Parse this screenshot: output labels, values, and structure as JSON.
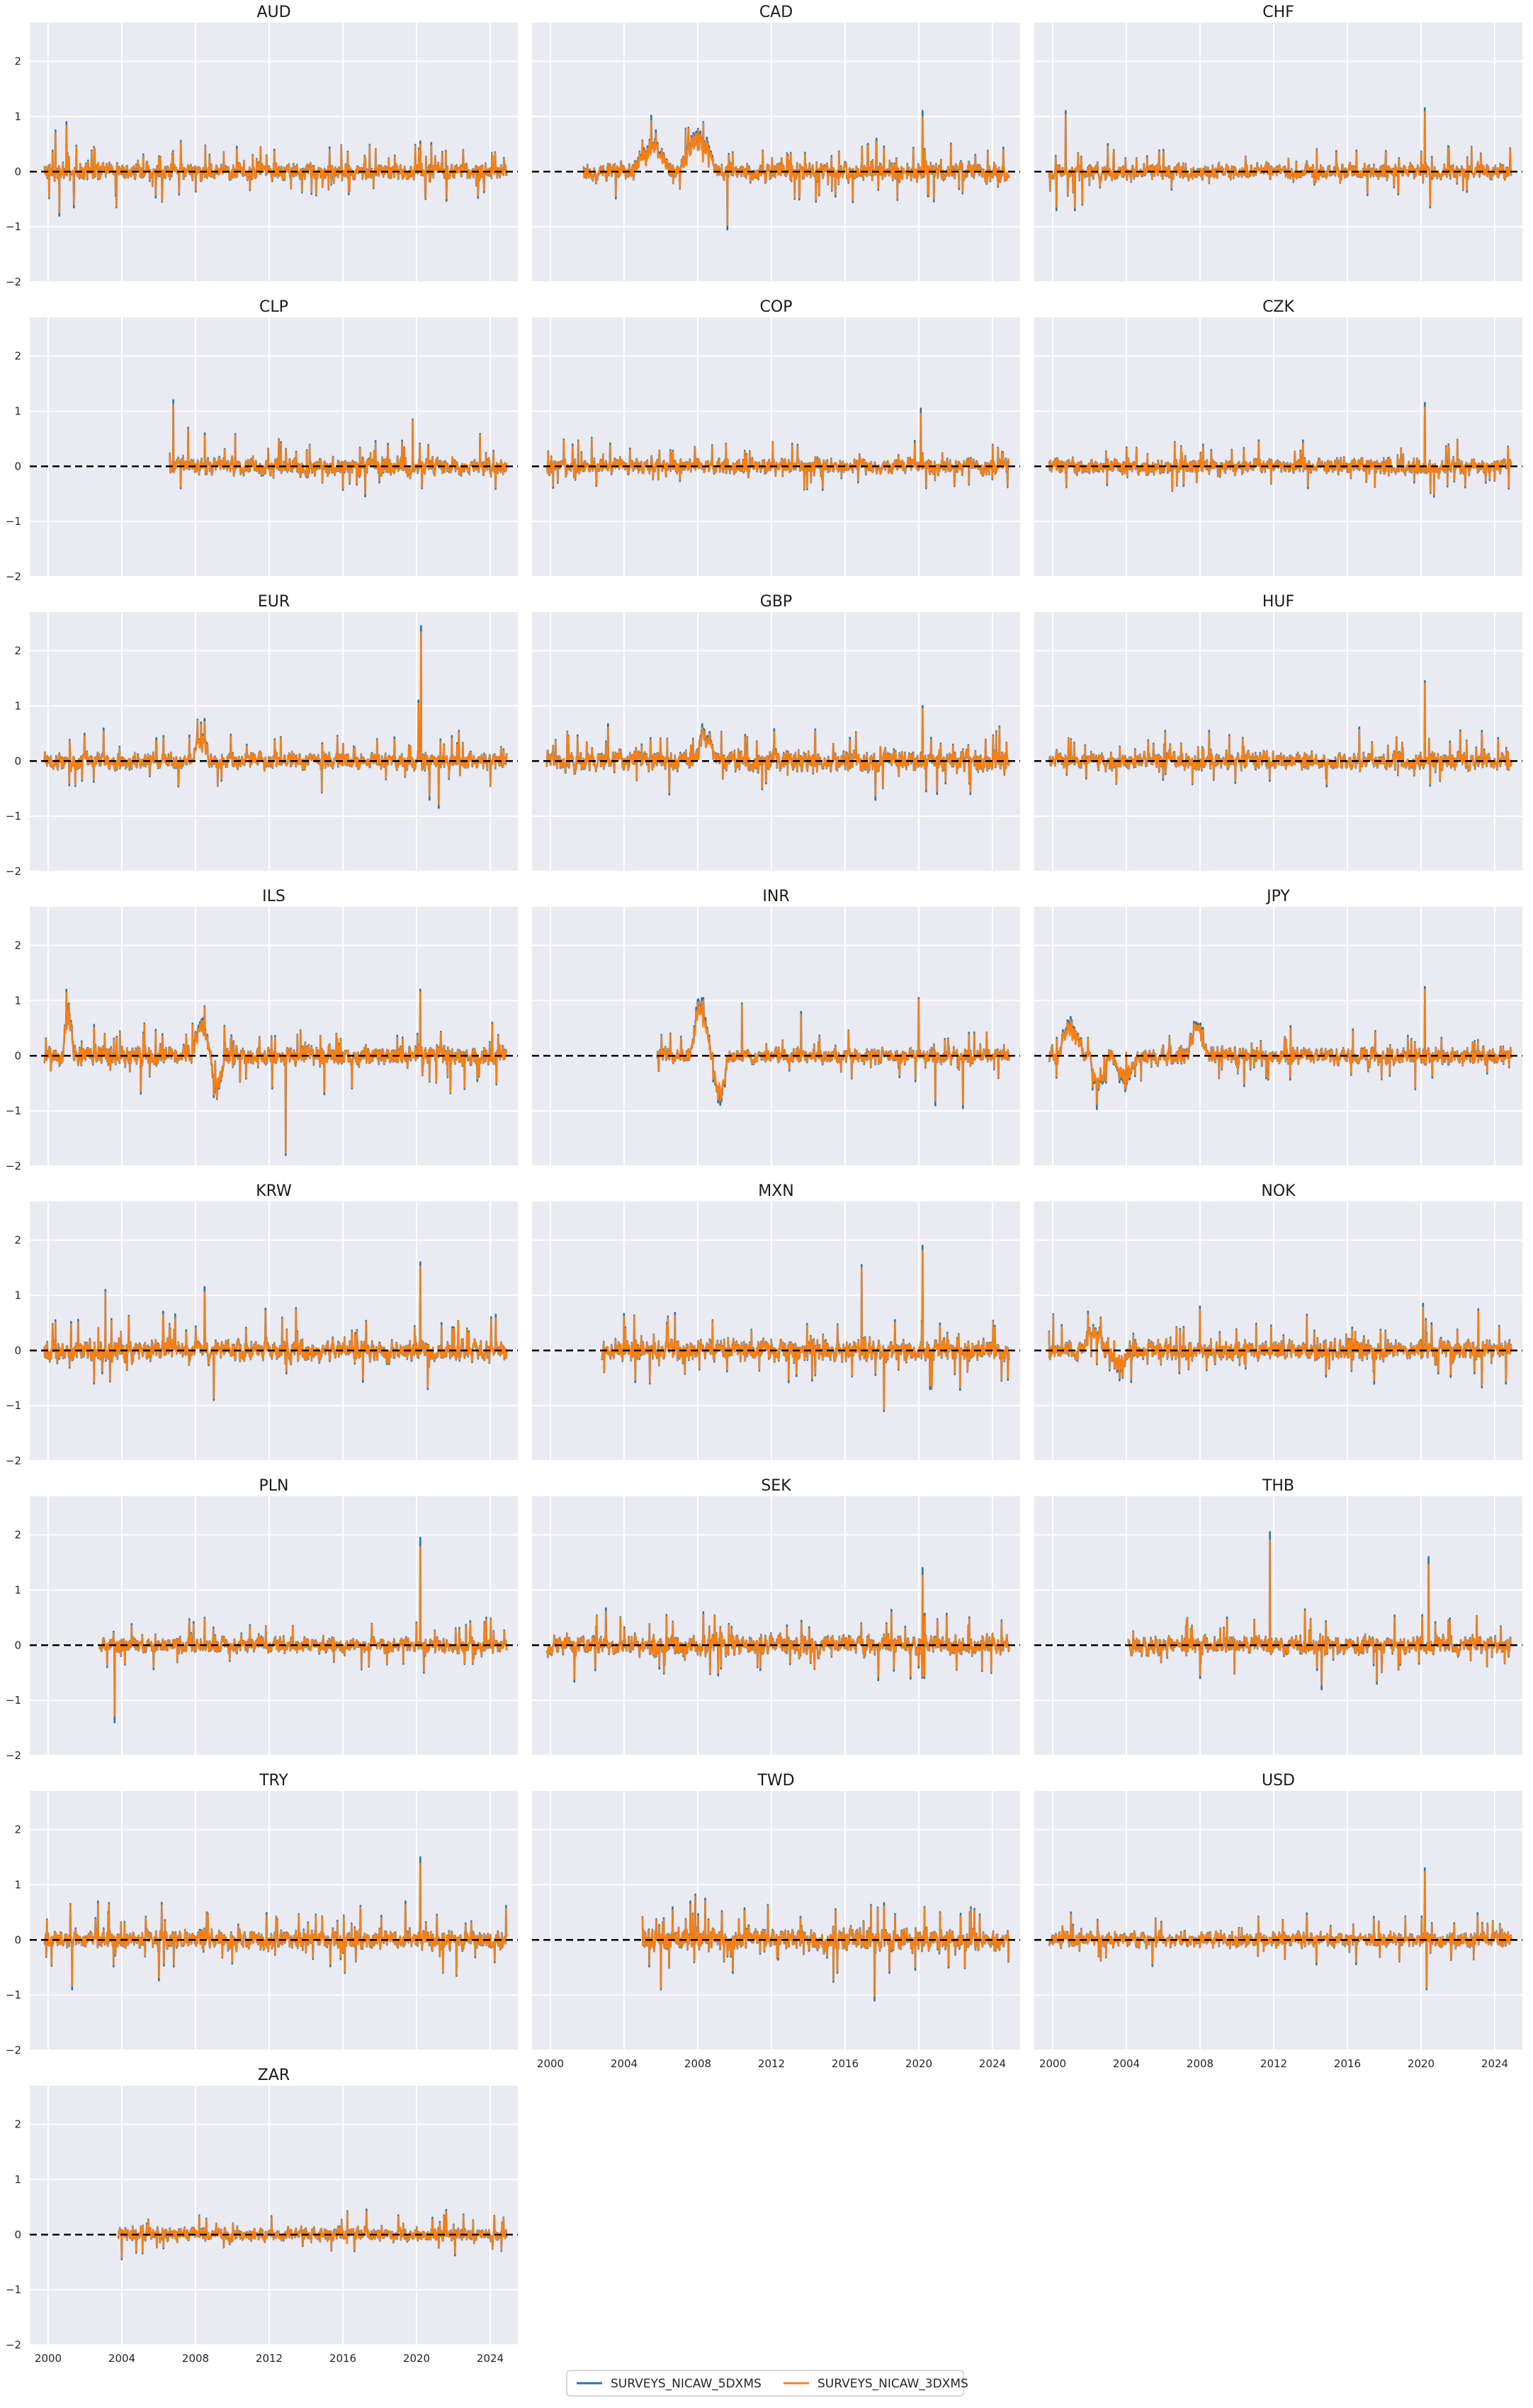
{
  "chart_data": {
    "type": "line",
    "layout": "small-multiples",
    "grid": true,
    "ylim": [
      -2,
      2.7
    ],
    "yticks": [
      "2",
      "1",
      "0",
      "−1",
      "−2"
    ],
    "xlim": [
      1999,
      2025.5
    ],
    "xticks": [
      "2000",
      "2004",
      "2008",
      "2012",
      "2016",
      "2020",
      "2024"
    ],
    "reference_line": {
      "y": 0,
      "style": "dashed",
      "color": "#000000"
    },
    "legend": {
      "placement": "bottom-center",
      "entries": [
        {
          "name": "SURVEYS_NICAW_5DXMS",
          "color": "#1f77b4"
        },
        {
          "name": "SURVEYS_NICAW_3DXMS",
          "color": "#ff7f0e"
        }
      ]
    },
    "panels": [
      {
        "title": "AUD",
        "start": 1999.8,
        "end": 2024.9,
        "amp": 0.11,
        "spikes": [
          [
            2000.4,
            0.75
          ],
          [
            2000.6,
            -0.8
          ],
          [
            2001.0,
            0.9
          ],
          [
            2001.4,
            -0.65
          ],
          [
            2002.5,
            0.45
          ],
          [
            2003.7,
            -0.65
          ],
          [
            2020.2,
            0.55
          ],
          [
            2020.5,
            -0.5
          ]
        ]
      },
      {
        "title": "CAD",
        "start": 2001.8,
        "end": 2024.9,
        "amp": 0.12,
        "spikes": [
          [
            2007.5,
            0.8
          ],
          [
            2008.3,
            0.9
          ],
          [
            2009.6,
            -1.05
          ],
          [
            2020.2,
            1.1
          ],
          [
            2020.5,
            -0.45
          ]
        ],
        "waves": [
          [
            2004.5,
            2006.5,
            0.4
          ],
          [
            2007.0,
            2009.0,
            0.6
          ]
        ]
      },
      {
        "title": "CHF",
        "start": 1999.8,
        "end": 2024.9,
        "amp": 0.1,
        "spikes": [
          [
            2000.7,
            1.1
          ],
          [
            2000.2,
            -0.7
          ],
          [
            2001.2,
            -0.7
          ],
          [
            2001.6,
            -0.6
          ],
          [
            2003.0,
            0.5
          ],
          [
            2020.2,
            1.15
          ],
          [
            2020.5,
            -0.65
          ]
        ]
      },
      {
        "title": "CLP",
        "start": 2006.6,
        "end": 2024.9,
        "amp": 0.12,
        "spikes": [
          [
            2006.8,
            1.2
          ],
          [
            2007.2,
            -0.4
          ],
          [
            2007.6,
            0.7
          ],
          [
            2008.5,
            0.6
          ],
          [
            2019.8,
            0.85
          ],
          [
            2020.3,
            -0.4
          ]
        ]
      },
      {
        "title": "COP",
        "start": 1999.8,
        "end": 2024.9,
        "amp": 0.1,
        "spikes": [
          [
            2000.4,
            -0.3
          ],
          [
            2001.2,
            0.4
          ],
          [
            2020.1,
            1.05
          ],
          [
            2020.4,
            -0.4
          ]
        ]
      },
      {
        "title": "CZK",
        "start": 1999.8,
        "end": 2024.9,
        "amp": 0.1,
        "spikes": [
          [
            2008.6,
            0.3
          ],
          [
            2020.2,
            1.15
          ],
          [
            2020.7,
            -0.55
          ],
          [
            2021.5,
            0.4
          ]
        ]
      },
      {
        "title": "EUR",
        "start": 1999.8,
        "end": 2024.9,
        "amp": 0.11,
        "spikes": [
          [
            2008.3,
            0.7
          ],
          [
            2009.2,
            -0.45
          ],
          [
            2020.1,
            1.1
          ],
          [
            2020.25,
            2.45
          ],
          [
            2020.7,
            -0.7
          ],
          [
            2021.2,
            -0.85
          ],
          [
            2022.3,
            0.55
          ]
        ],
        "waves": [
          [
            2007.8,
            2008.8,
            0.4
          ]
        ]
      },
      {
        "title": "GBP",
        "start": 1999.8,
        "end": 2024.9,
        "amp": 0.14,
        "spikes": [
          [
            2008.2,
            0.55
          ],
          [
            2020.2,
            1.0
          ],
          [
            2020.4,
            -0.55
          ],
          [
            2021.0,
            -0.6
          ],
          [
            2022.8,
            -0.6
          ]
        ],
        "waves": [
          [
            2007.8,
            2009.0,
            0.45
          ]
        ]
      },
      {
        "title": "HUF",
        "start": 1999.8,
        "end": 2024.9,
        "amp": 0.11,
        "spikes": [
          [
            2006.1,
            0.55
          ],
          [
            2008.5,
            0.55
          ],
          [
            2020.2,
            1.45
          ],
          [
            2020.5,
            -0.45
          ],
          [
            2023.3,
            0.55
          ]
        ]
      },
      {
        "title": "ILS",
        "start": 1999.8,
        "end": 2024.9,
        "amp": 0.13,
        "spikes": [
          [
            2001.0,
            1.2
          ],
          [
            2008.5,
            0.9
          ],
          [
            2009.0,
            -0.75
          ],
          [
            2012.9,
            -1.8
          ],
          [
            2015.0,
            -0.7
          ],
          [
            2020.2,
            1.2
          ],
          [
            2024.1,
            0.6
          ]
        ],
        "waves": [
          [
            2000.8,
            2001.4,
            0.8
          ],
          [
            2007.8,
            2008.8,
            0.5
          ],
          [
            2008.8,
            2009.6,
            -0.6
          ]
        ]
      },
      {
        "title": "INR",
        "start": 2005.8,
        "end": 2024.9,
        "amp": 0.1,
        "spikes": [
          [
            2008.3,
            1.05
          ],
          [
            2009.1,
            -0.85
          ],
          [
            2010.4,
            0.95
          ],
          [
            2013.6,
            0.8
          ],
          [
            2020.0,
            1.05
          ],
          [
            2020.9,
            -0.9
          ],
          [
            2022.4,
            -0.95
          ]
        ],
        "waves": [
          [
            2007.6,
            2008.7,
            0.9
          ],
          [
            2008.8,
            2009.6,
            -0.75
          ]
        ]
      },
      {
        "title": "JPY",
        "start": 1999.8,
        "end": 2024.9,
        "amp": 0.11,
        "spikes": [
          [
            2000.2,
            -0.4
          ],
          [
            2004.8,
            -0.45
          ],
          [
            2010.4,
            -0.55
          ],
          [
            2020.2,
            1.25
          ],
          [
            2020.6,
            -0.4
          ]
        ],
        "waves": [
          [
            2000.3,
            2001.7,
            0.5
          ],
          [
            2002.0,
            2003.0,
            -0.5
          ],
          [
            2003.2,
            2004.6,
            -0.4
          ],
          [
            2007.3,
            2008.4,
            0.5
          ]
        ]
      },
      {
        "title": "KRW",
        "start": 1999.8,
        "end": 2024.9,
        "amp": 0.14,
        "spikes": [
          [
            2000.4,
            0.55
          ],
          [
            2002.5,
            -0.6
          ],
          [
            2003.1,
            1.1
          ],
          [
            2008.5,
            1.15
          ],
          [
            2009.0,
            -0.9
          ],
          [
            2012.7,
            0.6
          ],
          [
            2020.2,
            1.6
          ],
          [
            2020.6,
            -0.7
          ]
        ]
      },
      {
        "title": "MXN",
        "start": 2002.8,
        "end": 2024.9,
        "amp": 0.14,
        "spikes": [
          [
            2005.4,
            -0.6
          ],
          [
            2008.8,
            0.55
          ],
          [
            2016.9,
            1.55
          ],
          [
            2018.1,
            -1.1
          ],
          [
            2020.2,
            1.9
          ],
          [
            2020.6,
            -0.7
          ],
          [
            2024.5,
            -0.55
          ]
        ]
      },
      {
        "title": "NOK",
        "start": 1999.8,
        "end": 2024.9,
        "amp": 0.13,
        "spikes": [
          [
            2002.6,
            0.6
          ],
          [
            2003.8,
            -0.5
          ],
          [
            2008.0,
            0.8
          ],
          [
            2013.8,
            0.65
          ],
          [
            2020.1,
            0.85
          ],
          [
            2023.1,
            0.75
          ],
          [
            2024.6,
            -0.6
          ]
        ],
        "waves": [
          [
            2001.7,
            2002.8,
            0.4
          ],
          [
            2003.0,
            2004.2,
            -0.3
          ]
        ]
      },
      {
        "title": "PLN",
        "start": 2002.8,
        "end": 2024.9,
        "amp": 0.1,
        "spikes": [
          [
            2003.2,
            -0.4
          ],
          [
            2003.6,
            -1.4
          ],
          [
            2008.5,
            0.5
          ],
          [
            2020.2,
            1.95
          ],
          [
            2020.4,
            -0.5
          ]
        ]
      },
      {
        "title": "SEK",
        "start": 1999.8,
        "end": 2024.9,
        "amp": 0.13,
        "spikes": [
          [
            2006.3,
            0.55
          ],
          [
            2008.3,
            0.6
          ],
          [
            2009.1,
            -0.55
          ],
          [
            2020.2,
            1.4
          ],
          [
            2020.3,
            -0.6
          ]
        ]
      },
      {
        "title": "THB",
        "start": 2004.1,
        "end": 2024.9,
        "amp": 0.12,
        "spikes": [
          [
            2011.8,
            2.05
          ],
          [
            2013.7,
            0.65
          ],
          [
            2014.6,
            -0.8
          ],
          [
            2017.6,
            -0.7
          ],
          [
            2020.4,
            1.6
          ]
        ]
      },
      {
        "title": "TRY",
        "start": 1999.8,
        "end": 2024.9,
        "amp": 0.13,
        "spikes": [
          [
            2001.2,
            0.65
          ],
          [
            2001.3,
            -0.9
          ],
          [
            2002.7,
            0.7
          ],
          [
            2008.6,
            0.5
          ],
          [
            2016.1,
            -0.6
          ],
          [
            2019.4,
            0.7
          ],
          [
            2020.2,
            1.5
          ]
        ]
      },
      {
        "title": "TWD",
        "start": 2005.0,
        "end": 2024.9,
        "amp": 0.15,
        "spikes": [
          [
            2006.0,
            -0.9
          ],
          [
            2007.6,
            0.7
          ],
          [
            2008.4,
            0.75
          ],
          [
            2009.9,
            -0.6
          ],
          [
            2017.6,
            -1.1
          ],
          [
            2020.3,
            0.6
          ]
        ]
      },
      {
        "title": "USD",
        "start": 1999.8,
        "end": 2024.9,
        "amp": 0.1,
        "spikes": [
          [
            2001.0,
            0.5
          ],
          [
            2002.5,
            -0.3
          ],
          [
            2020.2,
            1.3
          ],
          [
            2020.3,
            -0.9
          ]
        ]
      },
      {
        "title": "ZAR",
        "start": 2003.8,
        "end": 2024.9,
        "amp": 0.09,
        "spikes": [
          [
            2004.0,
            -0.45
          ],
          [
            2008.2,
            0.35
          ],
          [
            2021.6,
            0.45
          ],
          [
            2024.6,
            -0.3
          ]
        ]
      }
    ]
  }
}
